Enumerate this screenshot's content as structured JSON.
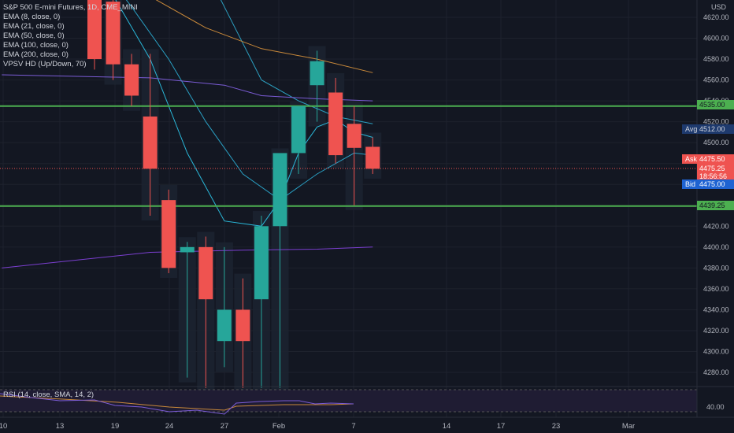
{
  "legend": {
    "symbol": "S&P 500 E-mini Futures, 1D, CME_MINI",
    "indicators": [
      "EMA (8, close, 0)",
      "EMA (21, close, 0)",
      "EMA (50, close, 0)",
      "EMA (100, close, 0)",
      "EMA (200, close, 0)",
      "VPSV HD (Up/Down, 70)"
    ]
  },
  "currency": "USD",
  "rsi": {
    "label": "RSI (14, close, SMA, 14, 2)",
    "level_label": "40.00"
  },
  "price_axis_labels": [
    "4620.00",
    "4600.00",
    "4580.00",
    "4560.00",
    "4540.00",
    "4520.00",
    "4500.00",
    "4480.00",
    "4460.00",
    "4440.00",
    "4420.00",
    "4400.00",
    "4380.00",
    "4360.00",
    "4340.00",
    "4320.00",
    "4300.00",
    "4280.00"
  ],
  "date_axis_labels": [
    "10",
    "13",
    "19",
    "24",
    "27",
    "Feb",
    "7",
    "14",
    "17",
    "23",
    "Mar"
  ],
  "levels": [
    {
      "price": 4535.0,
      "label": "4535.00",
      "color": "#4caf50"
    },
    {
      "price": 4439.25,
      "label": "4439.25",
      "color": "#4caf50"
    }
  ],
  "avg": {
    "tag": "Avg",
    "value": "4512.00",
    "color": "#1e3a6e"
  },
  "ask": {
    "tag": "Ask",
    "value": "4475.50",
    "color": "#ef5350"
  },
  "current": {
    "price": "4475.25",
    "countdown": "18:56:56",
    "color": "#ef5350"
  },
  "bid": {
    "tag": "Bid",
    "value": "4475.00",
    "color": "#1e63d2"
  },
  "colors": {
    "up": "#26a69a",
    "down": "#ef5350",
    "bg": "#131722",
    "grid": "#1e222d"
  },
  "chart_data": {
    "type": "candlestick",
    "ylim": [
      4265,
      4630
    ],
    "candles": [
      {
        "date": "Jan 12",
        "open": 4640,
        "high": 4650,
        "close": 4580,
        "low": 4570
      },
      {
        "date": "Jan 13",
        "open": 4635,
        "high": 4650,
        "close": 4575,
        "low": 4560
      },
      {
        "date": "Jan 14",
        "open": 4575,
        "high": 4585,
        "close": 4545,
        "low": 4535
      },
      {
        "date": "Jan 18",
        "open": 4525,
        "high": 4585,
        "close": 4475,
        "low": 4430
      },
      {
        "date": "Jan 19",
        "open": 4445,
        "high": 4455,
        "close": 4380,
        "low": 4375
      },
      {
        "date": "Jan 20",
        "open": 4395,
        "high": 4405,
        "close": 4400,
        "low": 4275
      },
      {
        "date": "Jan 21",
        "open": 4400,
        "high": 4410,
        "close": 4350,
        "low": 4265
      },
      {
        "date": "Jan 24",
        "open": 4310,
        "high": 4400,
        "close": 4340,
        "low": 4285
      },
      {
        "date": "Jan 25",
        "open": 4340,
        "high": 4370,
        "close": 4310,
        "low": 4265
      },
      {
        "date": "Jan 26",
        "open": 4350,
        "high": 4430,
        "close": 4420,
        "low": 4265
      },
      {
        "date": "Jan 27",
        "open": 4420,
        "high": 4490,
        "close": 4490,
        "low": 4265
      },
      {
        "date": "Jan 28",
        "open": 4490,
        "high": 4535,
        "close": 4535,
        "low": 4470
      },
      {
        "date": "Jan 31",
        "open": 4555,
        "high": 4588,
        "close": 4578,
        "low": 4520
      },
      {
        "date": "Feb 1",
        "open": 4548,
        "high": 4562,
        "close": 4488,
        "low": 4480
      },
      {
        "date": "Feb 2",
        "open": 4518,
        "high": 4535,
        "close": 4495,
        "low": 4440
      },
      {
        "date": "Feb 3",
        "open": 4496,
        "high": 4505,
        "close": 4475,
        "low": 4470
      }
    ],
    "ema_series": [
      {
        "name": "EMA (8, close, 0)",
        "color": "#2ab7d8",
        "points": [
          [
            -1,
            4702
          ],
          [
            3,
            4580
          ],
          [
            5,
            4490
          ],
          [
            7,
            4425
          ],
          [
            9,
            4420
          ],
          [
            10,
            4445
          ],
          [
            11,
            4490
          ],
          [
            12,
            4515
          ],
          [
            13,
            4522
          ],
          [
            14,
            4510
          ],
          [
            15,
            4505
          ]
        ]
      },
      {
        "name": "EMA (21, close, 0)",
        "color": "#2aa0c4",
        "points": [
          [
            -1,
            4700
          ],
          [
            2,
            4630
          ],
          [
            4,
            4580
          ],
          [
            6,
            4520
          ],
          [
            8,
            4470
          ],
          [
            10,
            4445
          ],
          [
            12,
            4470
          ],
          [
            14,
            4490
          ],
          [
            15,
            4488
          ]
        ]
      },
      {
        "name": "EMA (50, close, 0)",
        "color": "#2c9fc0",
        "points": [
          [
            5,
            4700
          ],
          [
            7,
            4630
          ],
          [
            9,
            4560
          ],
          [
            11,
            4540
          ],
          [
            13,
            4525
          ],
          [
            15,
            4518
          ]
        ]
      },
      {
        "name": "EMA (100, close, 0)",
        "color": "#7b5cd6",
        "points": [
          [
            -5,
            4565
          ],
          [
            3,
            4562
          ],
          [
            7,
            4555
          ],
          [
            9,
            4545
          ],
          [
            12,
            4542
          ],
          [
            15,
            4540
          ]
        ]
      },
      {
        "name": "EMA (200, close, 0)",
        "color": "#c9893a",
        "points": [
          [
            3,
            4640
          ],
          [
            6,
            4610
          ],
          [
            9,
            4590
          ],
          [
            12,
            4580
          ],
          [
            15,
            4567
          ]
        ]
      },
      {
        "name": "Lower line",
        "color": "#7b3fd0",
        "points": [
          [
            -5,
            4380
          ],
          [
            3,
            4395
          ],
          [
            8,
            4397
          ],
          [
            12,
            4398
          ],
          [
            15,
            4400
          ]
        ]
      }
    ]
  }
}
